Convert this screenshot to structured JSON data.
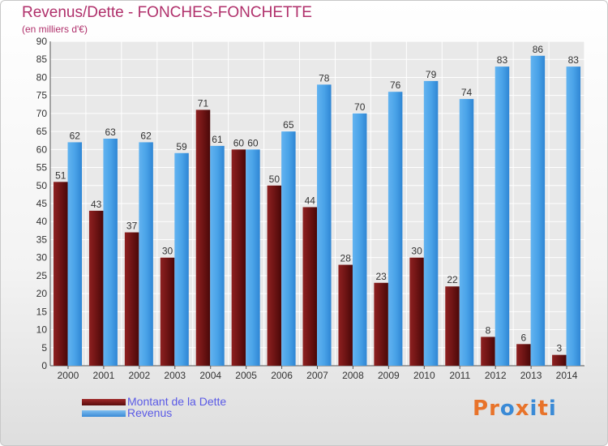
{
  "title": "Revenus/Dette - FONCHES-FONCHETTE",
  "subtitle": "(en milliers d'€)",
  "logo_text": "Proxiti",
  "colors": {
    "title": "#b0306b",
    "dette": "#7a1a1a",
    "revenus": "#4aa3e8",
    "legend_text": "#5a5ae6",
    "grid": "#ffffff",
    "logo": [
      "#e8732a",
      "#e8732a",
      "#3a8ad6",
      "#e8732a",
      "#3a8ad6",
      "#e8732a",
      "#3a8ad6"
    ]
  },
  "chart_data": {
    "type": "bar",
    "title": "Revenus/Dette - FONCHES-FONCHETTE",
    "subtitle": "(en milliers d'€)",
    "categories": [
      "2000",
      "2001",
      "2002",
      "2003",
      "2004",
      "2005",
      "2006",
      "2007",
      "2008",
      "2009",
      "2010",
      "2011",
      "2012",
      "2013",
      "2014"
    ],
    "series": [
      {
        "name": "Montant de la Dette",
        "values": [
          51,
          43,
          37,
          30,
          71,
          60,
          50,
          44,
          28,
          23,
          30,
          22,
          8,
          6,
          3
        ]
      },
      {
        "name": "Revenus",
        "values": [
          62,
          63,
          62,
          59,
          61,
          60,
          65,
          78,
          70,
          76,
          79,
          74,
          83,
          86,
          83
        ]
      }
    ],
    "ylim": [
      0,
      90
    ],
    "yticks": [
      0,
      5,
      10,
      15,
      20,
      25,
      30,
      35,
      40,
      45,
      50,
      55,
      60,
      65,
      70,
      75,
      80,
      85,
      90
    ],
    "grid": true,
    "legend_position": "bottom-left"
  }
}
